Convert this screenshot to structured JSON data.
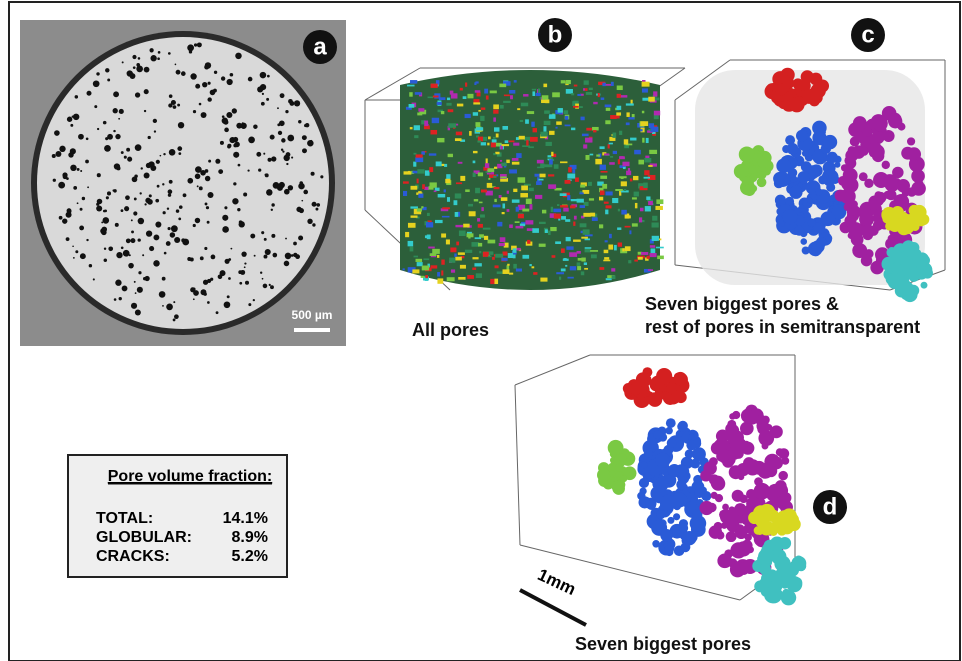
{
  "panels": [
    {
      "label": "a",
      "scale_bar": "500 µm"
    },
    {
      "label": "b",
      "caption": "All pores"
    },
    {
      "label": "c",
      "caption_lines": [
        "Seven biggest pores &",
        "rest of pores in semitransparent"
      ]
    },
    {
      "label": "d",
      "caption": "Seven biggest pores",
      "scale_bar": "1mm"
    }
  ],
  "pore_volume_fraction": {
    "title": "Pore volume fraction:",
    "rows": [
      [
        "TOTAL:",
        "14.1%"
      ],
      [
        "GLOBULAR:",
        "8.9%"
      ],
      [
        "CRACKS:",
        "5.2%"
      ]
    ]
  }
}
